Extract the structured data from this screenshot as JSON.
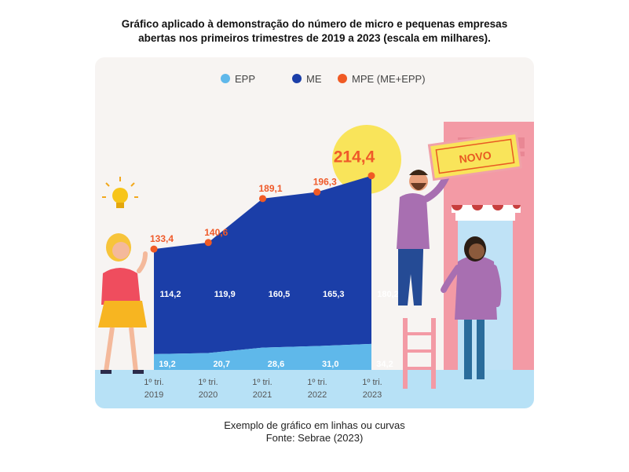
{
  "header": {
    "title_line1": "Gráfico aplicado à demonstração do número de micro e pequenas empresas",
    "title_line2": "abertas nos primeiros trimestres de 2019 a 2023 (escala em milhares)."
  },
  "footer": {
    "caption_line1": "Exemplo de gráfico em linhas ou curvas",
    "caption_line2": "Fonte: Sebrae (2023)"
  },
  "sign": {
    "text": "NOVO"
  },
  "chart_data": {
    "type": "area",
    "categories": [
      {
        "line1": "1º tri.",
        "line2": "2019"
      },
      {
        "line1": "1º tri.",
        "line2": "2020"
      },
      {
        "line1": "1º tri.",
        "line2": "2021"
      },
      {
        "line1": "1º tri.",
        "line2": "2022"
      },
      {
        "line1": "1º tri.",
        "line2": "2023"
      }
    ],
    "legend": [
      {
        "name": "EPP",
        "color": "#5fb8ea"
      },
      {
        "name": "ME",
        "color": "#1b3ea8"
      },
      {
        "name": "MPE (ME+EPP)",
        "color": "#f05a24"
      }
    ],
    "series": [
      {
        "name": "EPP",
        "values": [
          "19,2",
          "20,7",
          "28,6",
          "31,0",
          "34,2"
        ],
        "numeric": [
          19.2,
          20.7,
          28.6,
          31.0,
          34.2
        ],
        "color": "#5fb8ea"
      },
      {
        "name": "ME",
        "values": [
          "114,2",
          "119,9",
          "160,5",
          "165,3",
          "180,2"
        ],
        "numeric": [
          114.2,
          119.9,
          160.5,
          165.3,
          180.2
        ],
        "color": "#1b3ea8"
      },
      {
        "name": "MPE (ME+EPP)",
        "values": [
          "133,4",
          "140,6",
          "189,1",
          "196,3",
          "214,4"
        ],
        "numeric": [
          133.4,
          140.6,
          189.1,
          196.3,
          214.4
        ],
        "color": "#f05a24"
      }
    ],
    "highlight_value": "214,4",
    "legend_position": "top",
    "grid": false
  }
}
